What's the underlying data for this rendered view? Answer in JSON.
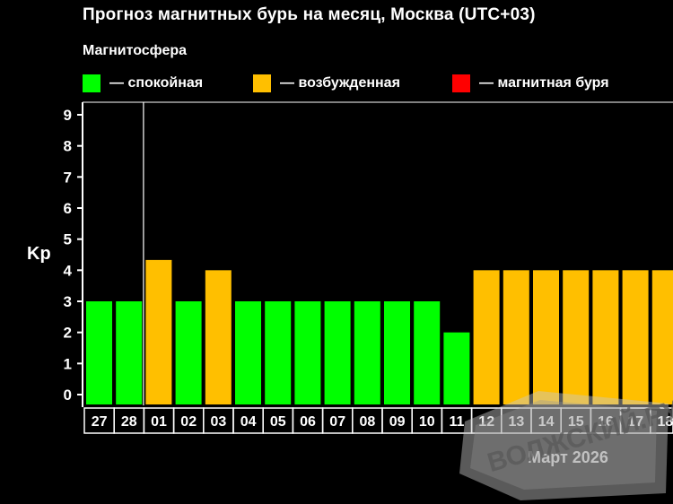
{
  "chart_data": {
    "type": "bar",
    "title": "Прогноз магнитных бурь на месяц, Москва (UTC+03)",
    "subtitle": "Магнитосфера",
    "ylabel": "Kp",
    "xlabel": "Март 2026",
    "ylim": [
      0,
      9
    ],
    "yticks": [
      "0",
      "1",
      "2",
      "3",
      "4",
      "5",
      "6",
      "7",
      "8",
      "9"
    ],
    "grid": false,
    "legend_position": "top",
    "legend": [
      {
        "label": "— спокойная",
        "color": "#00ff00"
      },
      {
        "label": "— возбужденная",
        "color": "#ffbf00"
      },
      {
        "label": "— магнитная буря",
        "color": "#ff0000"
      }
    ],
    "categories": [
      "27",
      "28",
      "01",
      "02",
      "03",
      "04",
      "05",
      "06",
      "07",
      "08",
      "09",
      "10",
      "11",
      "12",
      "13",
      "14",
      "15",
      "16",
      "17",
      "18"
    ],
    "values": [
      3,
      3,
      4.33,
      3,
      4,
      3,
      3,
      3,
      3,
      3,
      3,
      3,
      2,
      4,
      4,
      4,
      4,
      4,
      4,
      4
    ],
    "colors": [
      "#00ff00",
      "#00ff00",
      "#ffbf00",
      "#00ff00",
      "#ffbf00",
      "#00ff00",
      "#00ff00",
      "#00ff00",
      "#00ff00",
      "#00ff00",
      "#00ff00",
      "#00ff00",
      "#00ff00",
      "#ffbf00",
      "#ffbf00",
      "#ffbf00",
      "#ffbf00",
      "#ffbf00",
      "#ffbf00",
      "#ffbf00"
    ],
    "month_start_category": "01"
  },
  "watermark": "ВОЛЖСКИЙ.РУ"
}
